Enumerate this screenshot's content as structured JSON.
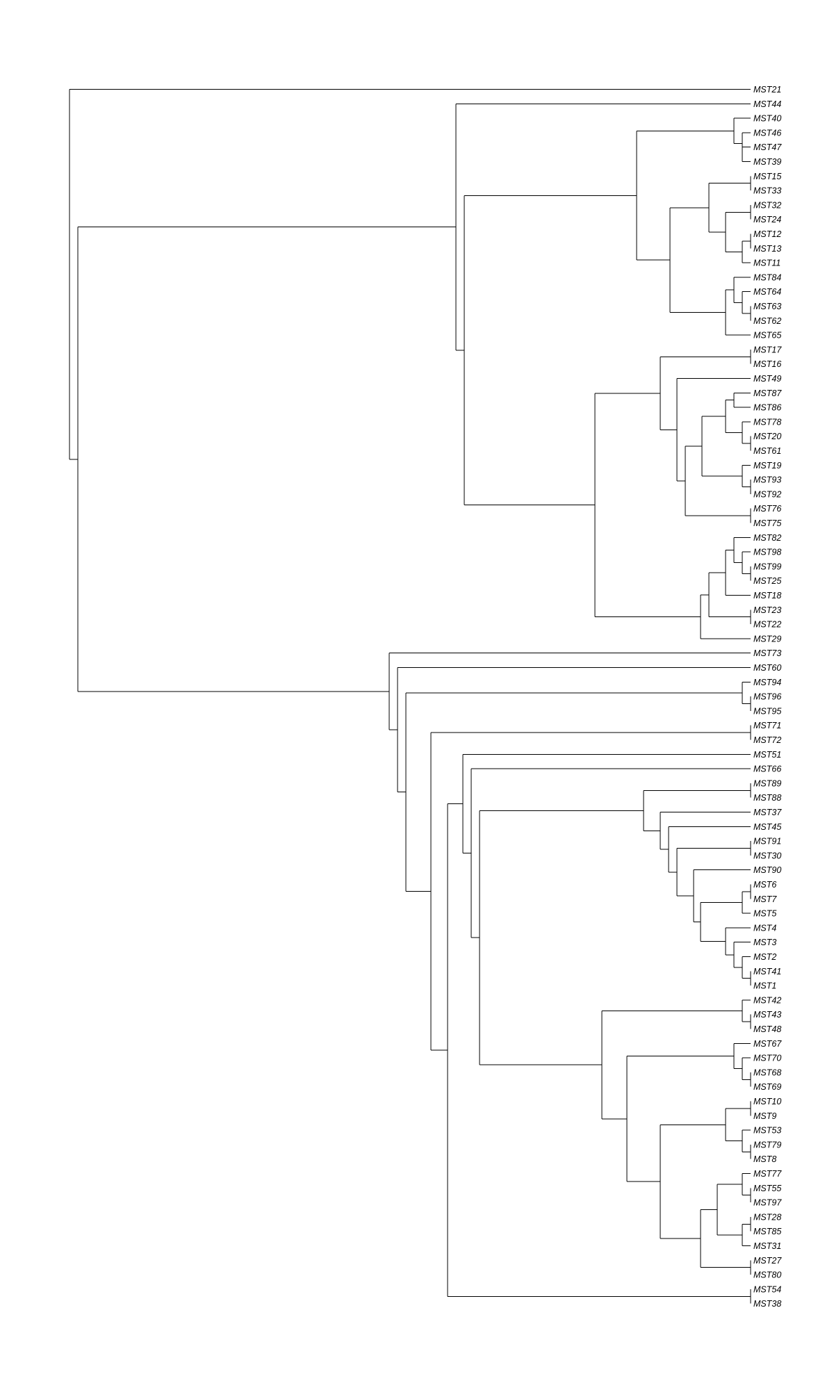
{
  "tree": {
    "tips": [
      "MST21",
      "MST44",
      "MST40",
      "MST46",
      "MST47",
      "MST39",
      "MST15",
      "MST33",
      "MST32",
      "MST24",
      "MST12",
      "MST13",
      "MST11",
      "MST84",
      "MST64",
      "MST63",
      "MST62",
      "MST65",
      "MST17",
      "MST16",
      "MST49",
      "MST87",
      "MST86",
      "MST78",
      "MST20",
      "MST61",
      "MST19",
      "MST93",
      "MST92",
      "MST76",
      "MST75",
      "MST82",
      "MST98",
      "MST99",
      "MST25",
      "MST18",
      "MST23",
      "MST22",
      "MST29",
      "MST73",
      "MST60",
      "MST94",
      "MST96",
      "MST95",
      "MST71",
      "MST72",
      "MST51",
      "MST66",
      "MST89",
      "MST88",
      "MST37",
      "MST45",
      "MST91",
      "MST30",
      "MST90",
      "MST6",
      "MST7",
      "MST5",
      "MST4",
      "MST3",
      "MST2",
      "MST41",
      "MST1",
      "MST42",
      "MST43",
      "MST48",
      "MST67",
      "MST70",
      "MST68",
      "MST69",
      "MST10",
      "MST9",
      "MST53",
      "MST79",
      "MST8",
      "MST77",
      "MST55",
      "MST97",
      "MST28",
      "MST85",
      "MST31",
      "MST27",
      "MST80",
      "MST54",
      "MST38"
    ]
  }
}
